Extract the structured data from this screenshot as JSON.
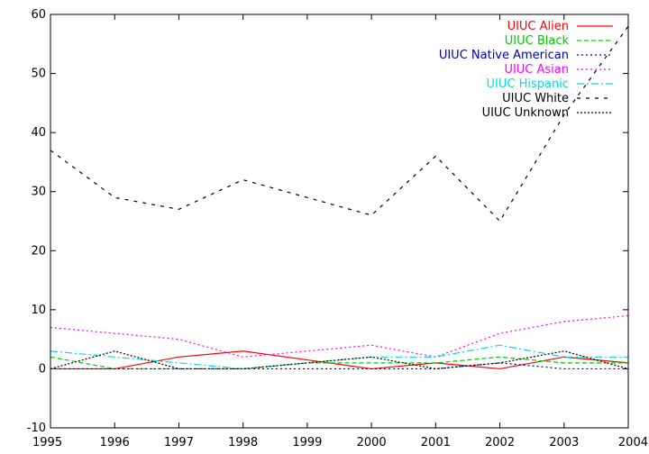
{
  "chart_data": {
    "type": "line",
    "x": [
      1995,
      1996,
      1997,
      1998,
      1999,
      2000,
      2001,
      2002,
      2003,
      2004
    ],
    "xlim": [
      1995,
      2004
    ],
    "ylim": [
      -10,
      60
    ],
    "xticks": [
      1995,
      1996,
      1997,
      1998,
      1999,
      2000,
      2001,
      2002,
      2003,
      2004
    ],
    "yticks": [
      -10,
      0,
      10,
      20,
      30,
      40,
      50,
      60
    ],
    "grid": false,
    "legend_position": "top-right",
    "series": [
      {
        "name": "UIUC Alien",
        "color": "#ff0000",
        "dash": "solid",
        "values": [
          0,
          0,
          2,
          3,
          1.5,
          0,
          1,
          0,
          2,
          1
        ]
      },
      {
        "name": "UIUC Black",
        "color": "#00cc00",
        "dash": "dash",
        "values": [
          2,
          0,
          0,
          0,
          1,
          1,
          1,
          2,
          1,
          1
        ]
      },
      {
        "name": "UIUC Native American",
        "color": "#0000aa",
        "dash": "dot",
        "values": [
          0,
          0,
          0,
          0,
          0,
          0,
          0,
          1,
          0,
          0
        ]
      },
      {
        "name": "UIUC Asian",
        "color": "#ff00ff",
        "dash": "dot",
        "values": [
          7,
          6,
          5,
          2,
          3,
          4,
          2,
          6,
          8,
          9
        ]
      },
      {
        "name": "UIUC Hispanic",
        "color": "#00dddd",
        "dash": "dashdot",
        "values": [
          3,
          2,
          1,
          0,
          1,
          2,
          2,
          4,
          2,
          2
        ]
      },
      {
        "name": "UIUC White",
        "color": "#000000",
        "dash": "longdash",
        "values": [
          37,
          29,
          27,
          32,
          29,
          26,
          36,
          25,
          43,
          58
        ]
      },
      {
        "name": "UIUC Unknown",
        "color": "#000000",
        "dash": "densedot",
        "values": [
          0,
          3,
          0,
          0,
          1,
          2,
          0,
          1,
          3,
          0
        ]
      }
    ]
  }
}
